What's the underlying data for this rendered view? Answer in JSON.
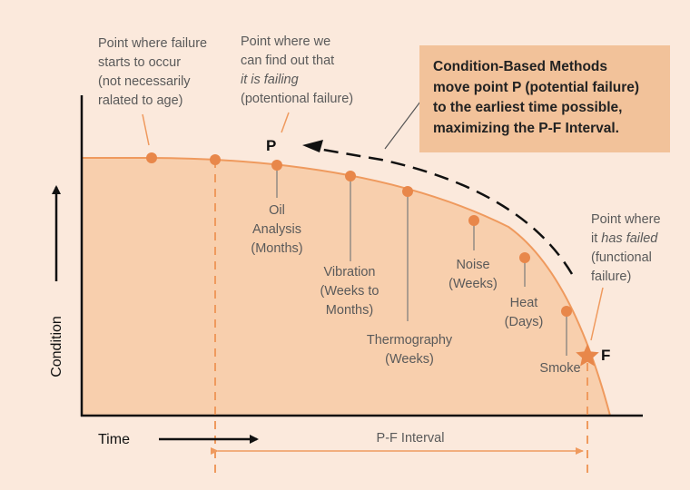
{
  "colors": {
    "background": "#fbe9dc",
    "curve_fill": "#f8cfad",
    "curve_stroke": "#ef9a5e",
    "marker": "#e8874a",
    "callout_bg": "#f2c29a",
    "text": "#5a5a5a"
  },
  "callout": {
    "line1": "Condition-Based Methods",
    "line2": "move point P (potential failure)",
    "line3": "to the earliest time possible,",
    "line4": "maximizing the P-F Interval."
  },
  "annotations": {
    "failure_start": [
      "Point where failure",
      "starts to occur",
      "(not necessarily",
      "ralated to age)"
    ],
    "potential_failure": {
      "line1": "Point where we",
      "line2": "can find out that",
      "line3": "it is failing",
      "line4": "(potentional failure)"
    },
    "functional_failure": {
      "line1": "Point where",
      "line2_a": "it ",
      "line2_b": "has failed",
      "line3": "(functional",
      "line4": "failure)"
    }
  },
  "point_labels": {
    "p": "P",
    "f": "F"
  },
  "methods": {
    "oil": [
      "Oil",
      "Analysis",
      "(Months)"
    ],
    "vibration": [
      "Vibration",
      "(Weeks to",
      "Months)"
    ],
    "thermography": [
      "Thermography",
      "(Weeks)"
    ],
    "noise": [
      "Noise",
      "(Weeks)"
    ],
    "heat": [
      "Heat",
      "(Days)"
    ],
    "smoke": [
      "Smoke"
    ]
  },
  "axes": {
    "y_label": "Condition",
    "x_label": "Time"
  },
  "interval_label": "P-F Interval"
}
